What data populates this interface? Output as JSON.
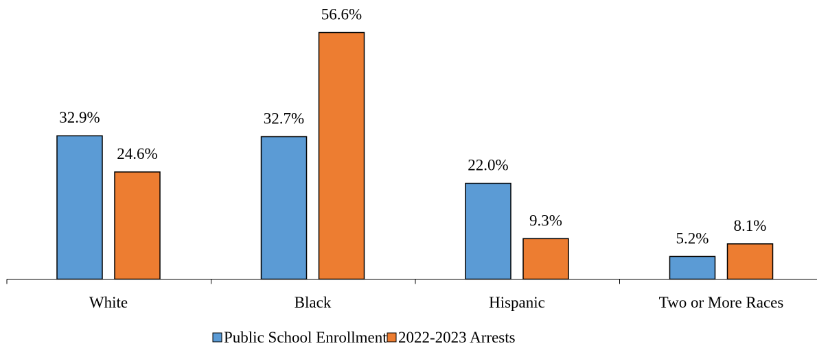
{
  "chart_data": {
    "type": "bar",
    "categories": [
      "White",
      "Black",
      "Hispanic",
      "Two or More Races"
    ],
    "series": [
      {
        "name": "Public School Enrollment",
        "values": [
          32.9,
          32.7,
          22.0,
          5.2
        ],
        "labels": [
          "32.9%",
          "32.7%",
          "22.0%",
          "5.2%"
        ],
        "color": "#5B9BD5"
      },
      {
        "name": "2022-2023 Arrests",
        "values": [
          24.6,
          56.6,
          9.3,
          8.1
        ],
        "labels": [
          "24.6%",
          "56.6%",
          "9.3%",
          "8.1%"
        ],
        "color": "#ED7D31"
      }
    ],
    "ylim": [
      0,
      56.6
    ],
    "grid": false,
    "legend_position": "bottom"
  }
}
